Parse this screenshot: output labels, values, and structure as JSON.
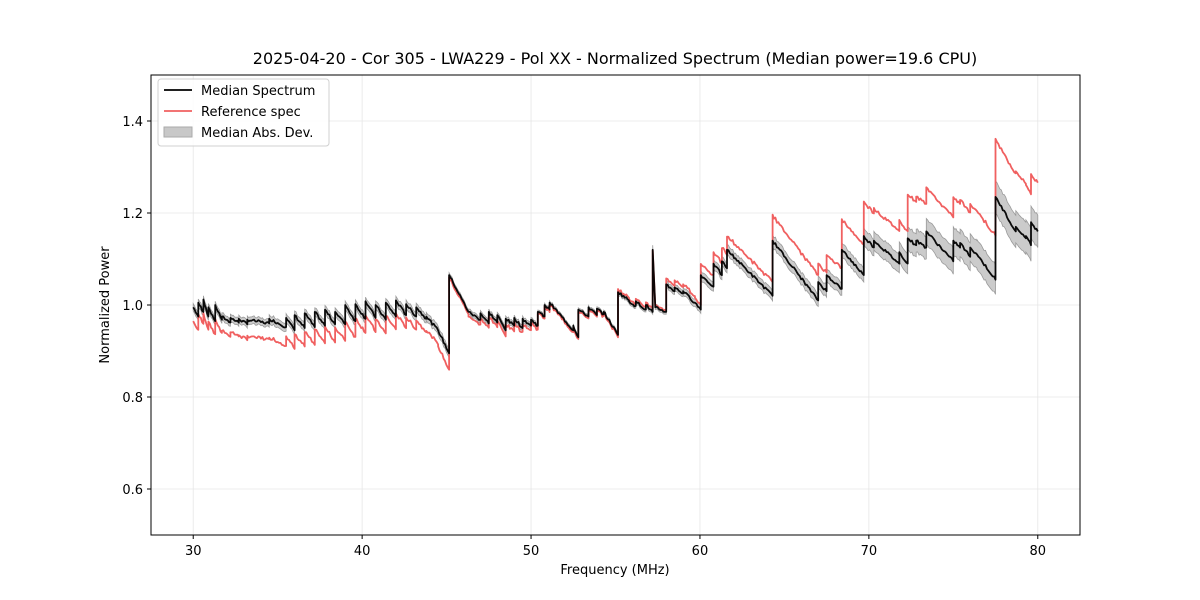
{
  "chart_data": {
    "type": "line",
    "title": "2025-04-20 - Cor 305 - LWA229 - Pol XX - Normalized Spectrum (Median power=19.6 CPU)",
    "xlabel": "Frequency (MHz)",
    "ylabel": "Normalized Power",
    "xlim": [
      27.5,
      82.5
    ],
    "ylim": [
      0.5,
      1.5
    ],
    "xticks": [
      30,
      40,
      50,
      60,
      70,
      80
    ],
    "xtick_labels": [
      "30",
      "40",
      "50",
      "60",
      "70",
      "80"
    ],
    "yticks": [
      0.6,
      0.8,
      1.0,
      1.2,
      1.4
    ],
    "ytick_labels": [
      "0.6",
      "0.8",
      "1.0",
      "1.2",
      "1.4"
    ],
    "grid": true,
    "legend": {
      "placement": "top-left",
      "entries": [
        {
          "label": "Median Spectrum",
          "kind": "line",
          "color": "#000000"
        },
        {
          "label": "Reference spec",
          "kind": "line",
          "color": "#f06060"
        },
        {
          "label": "Median Abs. Dev.",
          "kind": "patch",
          "color": "#c8c8c8"
        }
      ]
    },
    "series_colors": {
      "median": "#000000",
      "reference": "#f06060",
      "mad_fill": "#c8c8c8",
      "mad_edge": "#9a9a9a"
    },
    "segments_note": "Each segment: [f_start, f_end, median_start, median_end, reference_offset, mad_halfwidth]",
    "segments": [
      [
        30.0,
        30.3,
        0.995,
        0.975,
        -0.03,
        0.008
      ],
      [
        30.3,
        30.6,
        1.005,
        0.985,
        -0.025,
        0.008
      ],
      [
        30.6,
        30.9,
        1.012,
        0.975,
        -0.03,
        0.008
      ],
      [
        30.9,
        31.3,
        0.995,
        0.965,
        -0.03,
        0.008
      ],
      [
        31.3,
        31.7,
        1.0,
        0.968,
        -0.03,
        0.008
      ],
      [
        31.7,
        32.2,
        0.975,
        0.962,
        -0.03,
        0.008
      ],
      [
        32.2,
        32.7,
        0.972,
        0.962,
        -0.03,
        0.008
      ],
      [
        32.7,
        33.2,
        0.97,
        0.958,
        -0.035,
        0.008
      ],
      [
        33.2,
        34.5,
        0.968,
        0.96,
        -0.035,
        0.008
      ],
      [
        34.5,
        35.5,
        0.97,
        0.952,
        -0.04,
        0.009
      ],
      [
        35.5,
        36.0,
        0.972,
        0.945,
        -0.04,
        0.009
      ],
      [
        36.0,
        36.6,
        0.978,
        0.95,
        -0.04,
        0.009
      ],
      [
        36.6,
        37.2,
        0.982,
        0.952,
        -0.04,
        0.009
      ],
      [
        37.2,
        37.8,
        0.985,
        0.955,
        -0.038,
        0.009
      ],
      [
        37.8,
        38.4,
        0.99,
        0.958,
        -0.038,
        0.009
      ],
      [
        38.4,
        39.0,
        0.985,
        0.958,
        -0.035,
        0.009
      ],
      [
        39.0,
        39.6,
        1.0,
        0.965,
        -0.035,
        0.009
      ],
      [
        39.6,
        40.2,
        1.002,
        0.97,
        -0.03,
        0.009
      ],
      [
        40.2,
        40.8,
        1.008,
        0.972,
        -0.03,
        0.009
      ],
      [
        40.8,
        41.4,
        1.0,
        0.968,
        -0.03,
        0.009
      ],
      [
        41.4,
        42.0,
        1.005,
        0.975,
        -0.028,
        0.009
      ],
      [
        42.0,
        42.6,
        1.01,
        0.978,
        -0.028,
        0.009
      ],
      [
        42.6,
        43.2,
        1.002,
        0.975,
        -0.028,
        0.009
      ],
      [
        43.2,
        43.8,
        0.995,
        0.97,
        -0.028,
        0.009
      ],
      [
        43.8,
        44.5,
        0.975,
        0.945,
        -0.03,
        0.009
      ],
      [
        44.5,
        45.15,
        0.945,
        0.895,
        -0.035,
        0.009
      ],
      [
        45.15,
        46.3,
        1.065,
        0.985,
        -0.005,
        0.005
      ],
      [
        46.3,
        47.0,
        0.985,
        0.968,
        -0.01,
        0.006
      ],
      [
        47.0,
        47.5,
        0.982,
        0.96,
        -0.01,
        0.006
      ],
      [
        47.5,
        48.0,
        0.985,
        0.962,
        -0.01,
        0.006
      ],
      [
        48.0,
        48.5,
        0.978,
        0.945,
        -0.012,
        0.006
      ],
      [
        48.5,
        49.0,
        0.97,
        0.955,
        -0.012,
        0.006
      ],
      [
        49.0,
        49.5,
        0.972,
        0.95,
        -0.01,
        0.006
      ],
      [
        49.5,
        50.0,
        0.97,
        0.955,
        -0.01,
        0.006
      ],
      [
        50.0,
        50.4,
        0.968,
        0.955,
        -0.008,
        0.005
      ],
      [
        50.4,
        50.8,
        0.985,
        0.975,
        -0.004,
        0.004
      ],
      [
        50.8,
        51.1,
        1.0,
        0.99,
        -0.004,
        0.004
      ],
      [
        51.1,
        52.5,
        1.005,
        0.945,
        -0.004,
        0.004
      ],
      [
        52.5,
        52.8,
        0.955,
        0.93,
        -0.004,
        0.004
      ],
      [
        52.8,
        53.4,
        0.99,
        0.975,
        -0.004,
        0.004
      ],
      [
        53.4,
        53.9,
        0.995,
        0.978,
        -0.004,
        0.004
      ],
      [
        53.9,
        54.3,
        0.992,
        0.98,
        -0.004,
        0.004
      ],
      [
        54.3,
        55.15,
        0.985,
        0.935,
        -0.004,
        0.004
      ],
      [
        55.15,
        55.8,
        1.028,
        1.01,
        0.006,
        0.005
      ],
      [
        55.8,
        56.2,
        1.008,
        0.998,
        0.006,
        0.005
      ],
      [
        56.2,
        56.8,
        1.008,
        0.99,
        0.006,
        0.005
      ],
      [
        56.8,
        57.2,
        1.0,
        0.985,
        0.006,
        0.005
      ],
      [
        57.2,
        57.35,
        1.12,
        1.0,
        0.0,
        0.01
      ],
      [
        57.35,
        58.0,
        0.995,
        0.985,
        0.004,
        0.005
      ],
      [
        58.0,
        58.5,
        1.045,
        1.03,
        0.012,
        0.007
      ],
      [
        58.5,
        59.0,
        1.038,
        1.025,
        0.015,
        0.007
      ],
      [
        59.0,
        59.7,
        1.03,
        1.005,
        0.015,
        0.008
      ],
      [
        59.7,
        60.05,
        1.005,
        0.99,
        0.01,
        0.008
      ],
      [
        60.05,
        60.8,
        1.065,
        1.04,
        0.025,
        0.01
      ],
      [
        60.8,
        61.3,
        1.09,
        1.065,
        0.025,
        0.01
      ],
      [
        61.3,
        61.6,
        1.095,
        1.08,
        0.03,
        0.01
      ],
      [
        61.6,
        64.3,
        1.12,
        1.02,
        0.03,
        0.011
      ],
      [
        64.3,
        67.0,
        1.14,
        1.01,
        0.055,
        0.013
      ],
      [
        67.0,
        67.5,
        1.05,
        1.03,
        0.04,
        0.013
      ],
      [
        67.5,
        68.4,
        1.065,
        1.035,
        0.045,
        0.014
      ],
      [
        68.4,
        69.7,
        1.12,
        1.065,
        0.065,
        0.015
      ],
      [
        69.7,
        70.3,
        1.15,
        1.125,
        0.075,
        0.018
      ],
      [
        70.3,
        71.8,
        1.14,
        1.09,
        0.07,
        0.02
      ],
      [
        71.8,
        72.3,
        1.115,
        1.09,
        0.07,
        0.022
      ],
      [
        72.3,
        72.8,
        1.145,
        1.13,
        0.095,
        0.025
      ],
      [
        72.8,
        73.4,
        1.14,
        1.125,
        0.095,
        0.025
      ],
      [
        73.4,
        75.0,
        1.16,
        1.095,
        0.095,
        0.028
      ],
      [
        75.0,
        75.4,
        1.14,
        1.125,
        0.095,
        0.03
      ],
      [
        75.4,
        76.0,
        1.135,
        1.105,
        0.095,
        0.03
      ],
      [
        76.0,
        76.4,
        1.125,
        1.11,
        0.095,
        0.03
      ],
      [
        76.4,
        77.5,
        1.11,
        1.055,
        0.095,
        0.032
      ],
      [
        77.5,
        78.7,
        1.235,
        1.16,
        0.125,
        0.035
      ],
      [
        78.7,
        79.3,
        1.17,
        1.145,
        0.12,
        0.035
      ],
      [
        79.3,
        79.6,
        1.15,
        1.13,
        0.11,
        0.035
      ],
      [
        79.6,
        80.0,
        1.18,
        1.16,
        0.105,
        0.035
      ]
    ]
  }
}
